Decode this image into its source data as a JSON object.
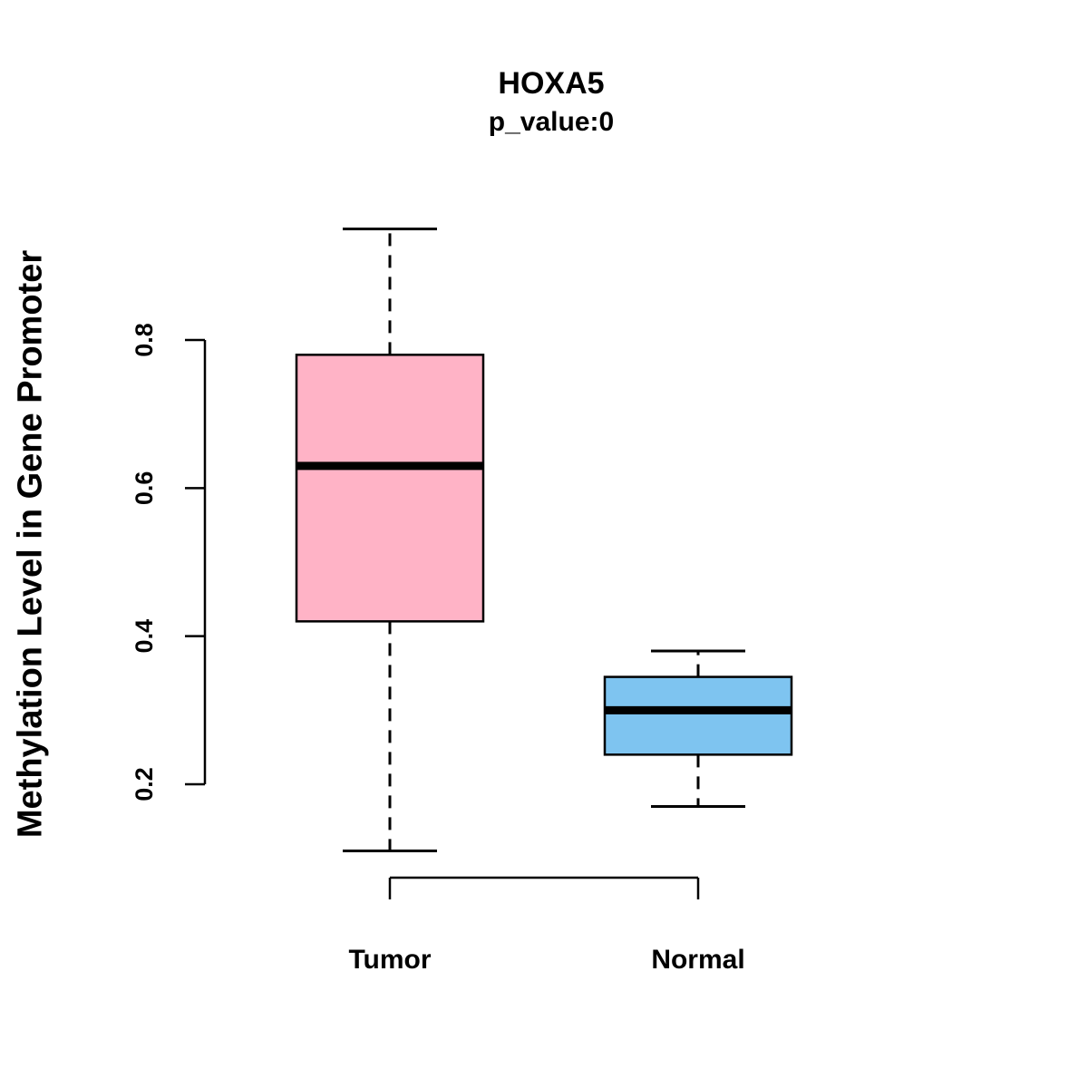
{
  "chart_data": {
    "type": "boxplot",
    "title": "HOXA5",
    "subtitle": "p_value:0",
    "ylabel": "Methylation Level in Gene Promoter",
    "xlabel": "",
    "categories": [
      "Tumor",
      "Normal"
    ],
    "yticks": [
      0.2,
      0.4,
      0.6,
      0.8
    ],
    "ylim": [
      0.08,
      0.98
    ],
    "grid": false,
    "legend": "none",
    "series": [
      {
        "name": "Tumor",
        "color": "#FFB3C6",
        "border_color": "#000000",
        "whisker_low": 0.11,
        "q1": 0.42,
        "median": 0.63,
        "q3": 0.78,
        "whisker_high": 0.95
      },
      {
        "name": "Normal",
        "color": "#7EC4F0",
        "border_color": "#000000",
        "whisker_low": 0.17,
        "q1": 0.24,
        "median": 0.3,
        "q3": 0.345,
        "whisker_high": 0.38
      }
    ]
  }
}
